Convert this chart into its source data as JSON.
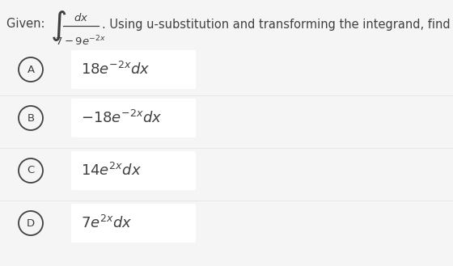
{
  "background_color": "#f5f5f5",
  "option_box_bg": "#ffffff",
  "text_color": "#404040",
  "given_label": "Given: ",
  "question_suffix": ". Using u-substitution and transforming the integrand, find du.",
  "options": [
    {
      "label": "A",
      "expr": "$18e^{-2x}dx$"
    },
    {
      "label": "B",
      "expr": "$-18e^{-2x}dx$"
    },
    {
      "label": "C",
      "expr": "$14e^{2x}dx$"
    },
    {
      "label": "D",
      "expr": "$7e^{2x}dx$"
    }
  ],
  "font_size_given": 10.5,
  "font_size_options": 13,
  "font_size_circle": 9.5
}
